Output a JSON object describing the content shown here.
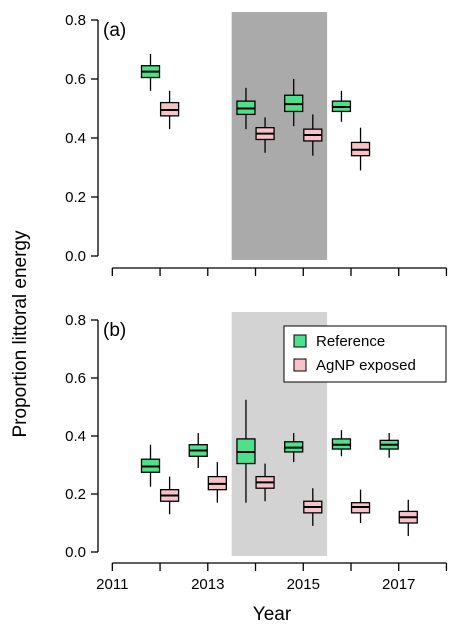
{
  "figure": {
    "ylabel": "Proportion littoral energy",
    "xlabel": "Year"
  },
  "legend": {
    "items": [
      {
        "label": "Reference",
        "color": "#4ee08a"
      },
      {
        "label": "AgNP exposed",
        "color": "#f7c2c8"
      }
    ]
  },
  "chart_data": [
    {
      "type": "box",
      "panel_label": "(a)",
      "ylim": [
        0,
        0.8
      ],
      "yticks": [
        0.0,
        0.2,
        0.4,
        0.6,
        0.8
      ],
      "ytick_labels": [
        "0.0",
        "0.2",
        "0.4",
        "0.6",
        "0.8"
      ],
      "xlim": [
        2010.7,
        2018.2
      ],
      "xticks": [
        2011,
        2012,
        2013,
        2014,
        2015,
        2016,
        2017,
        2018
      ],
      "shaded_x": [
        2013.5,
        2015.5
      ],
      "shade_color": "#aaaaaa",
      "series": [
        {
          "name": "Reference",
          "color": "#4ee08a",
          "boxes": [
            {
              "x": 2011.8,
              "low": 0.56,
              "q1": 0.605,
              "median": 0.625,
              "q3": 0.645,
              "high": 0.685
            },
            {
              "x": 2013.8,
              "low": 0.43,
              "q1": 0.48,
              "median": 0.5,
              "q3": 0.525,
              "high": 0.57
            },
            {
              "x": 2014.8,
              "low": 0.44,
              "q1": 0.49,
              "median": 0.515,
              "q3": 0.545,
              "high": 0.6
            },
            {
              "x": 2015.8,
              "low": 0.455,
              "q1": 0.49,
              "median": 0.505,
              "q3": 0.525,
              "high": 0.56
            }
          ]
        },
        {
          "name": "AgNP exposed",
          "color": "#f7c2c8",
          "boxes": [
            {
              "x": 2012.2,
              "low": 0.43,
              "q1": 0.475,
              "median": 0.495,
              "q3": 0.52,
              "high": 0.56
            },
            {
              "x": 2014.2,
              "low": 0.35,
              "q1": 0.395,
              "median": 0.415,
              "q3": 0.435,
              "high": 0.47
            },
            {
              "x": 2015.2,
              "low": 0.34,
              "q1": 0.39,
              "median": 0.41,
              "q3": 0.43,
              "high": 0.48
            },
            {
              "x": 2016.2,
              "low": 0.29,
              "q1": 0.34,
              "median": 0.36,
              "q3": 0.385,
              "high": 0.435
            }
          ]
        }
      ]
    },
    {
      "type": "box",
      "panel_label": "(b)",
      "ylim": [
        0,
        0.8
      ],
      "yticks": [
        0.0,
        0.2,
        0.4,
        0.6,
        0.8
      ],
      "ytick_labels": [
        "0.0",
        "0.2",
        "0.4",
        "0.6",
        "0.8"
      ],
      "xlim": [
        2010.7,
        2018.2
      ],
      "xticks": [
        2011,
        2012,
        2013,
        2014,
        2015,
        2016,
        2017,
        2018
      ],
      "xtick_labels": [
        "2011",
        "",
        "2013",
        "",
        "2015",
        "",
        "2017",
        ""
      ],
      "shaded_x": [
        2013.5,
        2015.5
      ],
      "shade_color": "#d3d3d3",
      "legend_position": "top-right",
      "series": [
        {
          "name": "Reference",
          "color": "#4ee08a",
          "boxes": [
            {
              "x": 2011.8,
              "low": 0.225,
              "q1": 0.275,
              "median": 0.295,
              "q3": 0.32,
              "high": 0.37
            },
            {
              "x": 2012.8,
              "low": 0.29,
              "q1": 0.33,
              "median": 0.35,
              "q3": 0.37,
              "high": 0.41
            },
            {
              "x": 2013.8,
              "low": 0.17,
              "q1": 0.305,
              "median": 0.345,
              "q3": 0.39,
              "high": 0.525
            },
            {
              "x": 2014.8,
              "low": 0.31,
              "q1": 0.345,
              "median": 0.36,
              "q3": 0.38,
              "high": 0.41
            },
            {
              "x": 2015.8,
              "low": 0.33,
              "q1": 0.355,
              "median": 0.37,
              "q3": 0.39,
              "high": 0.42
            },
            {
              "x": 2016.8,
              "low": 0.325,
              "q1": 0.355,
              "median": 0.37,
              "q3": 0.385,
              "high": 0.41
            }
          ]
        },
        {
          "name": "AgNP exposed",
          "color": "#f7c2c8",
          "boxes": [
            {
              "x": 2012.2,
              "low": 0.13,
              "q1": 0.175,
              "median": 0.195,
              "q3": 0.215,
              "high": 0.26
            },
            {
              "x": 2013.2,
              "low": 0.17,
              "q1": 0.215,
              "median": 0.235,
              "q3": 0.26,
              "high": 0.31
            },
            {
              "x": 2014.2,
              "low": 0.175,
              "q1": 0.22,
              "median": 0.24,
              "q3": 0.26,
              "high": 0.305
            },
            {
              "x": 2015.2,
              "low": 0.09,
              "q1": 0.135,
              "median": 0.155,
              "q3": 0.175,
              "high": 0.22
            },
            {
              "x": 2016.2,
              "low": 0.1,
              "q1": 0.135,
              "median": 0.155,
              "q3": 0.17,
              "high": 0.215
            },
            {
              "x": 2017.2,
              "low": 0.055,
              "q1": 0.1,
              "median": 0.12,
              "q3": 0.14,
              "high": 0.18
            }
          ]
        }
      ]
    }
  ]
}
